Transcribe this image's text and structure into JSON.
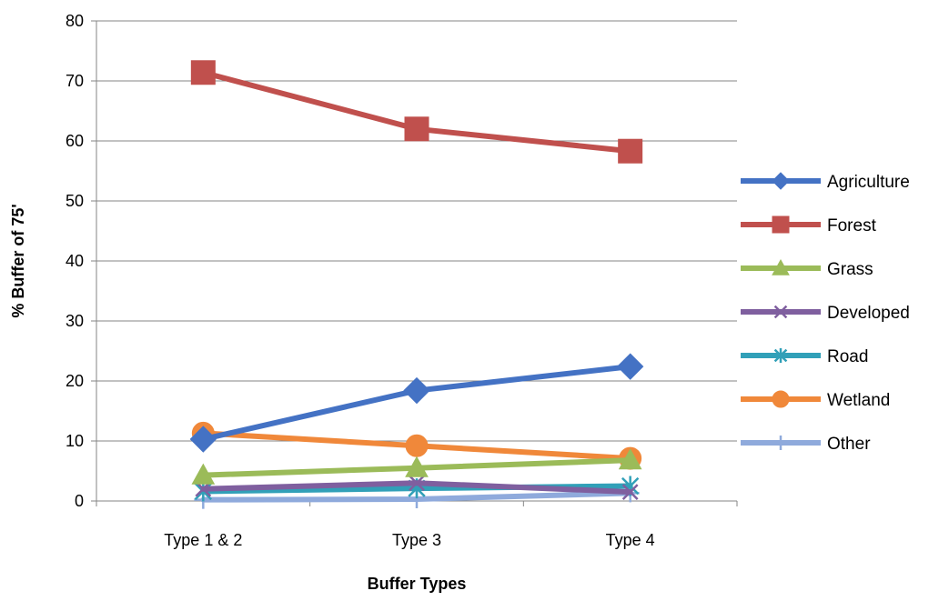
{
  "chart_data": {
    "type": "line",
    "title": "",
    "xlabel": "Buffer Types",
    "ylabel": "% Buffer of 75'",
    "categories": [
      "Type 1 & 2",
      "Type 3",
      "Type 4"
    ],
    "ylim": [
      0,
      80
    ],
    "yticks": [
      0,
      10,
      20,
      30,
      40,
      50,
      60,
      70,
      80
    ],
    "grid": "horizontal",
    "legend_position": "right",
    "series": [
      {
        "name": "Agriculture",
        "values": [
          10.3,
          18.4,
          22.4
        ],
        "color": "#4472c4",
        "marker": "diamond"
      },
      {
        "name": "Forest",
        "values": [
          71.4,
          62.0,
          58.3
        ],
        "color": "#c0504d",
        "marker": "square"
      },
      {
        "name": "Grass",
        "values": [
          4.3,
          5.5,
          6.8
        ],
        "color": "#9bbb59",
        "marker": "triangle"
      },
      {
        "name": "Developed",
        "values": [
          2.0,
          3.0,
          1.5
        ],
        "color": "#7f5f9f",
        "marker": "x"
      },
      {
        "name": "Road",
        "values": [
          1.6,
          2.1,
          2.5
        ],
        "color": "#31a0b8",
        "marker": "star"
      },
      {
        "name": "Wetland",
        "values": [
          11.3,
          9.2,
          7.1
        ],
        "color": "#f0883a",
        "marker": "circle"
      },
      {
        "name": "Other",
        "values": [
          0.2,
          0.3,
          1.3
        ],
        "color": "#8faadc",
        "marker": "plus"
      }
    ]
  }
}
